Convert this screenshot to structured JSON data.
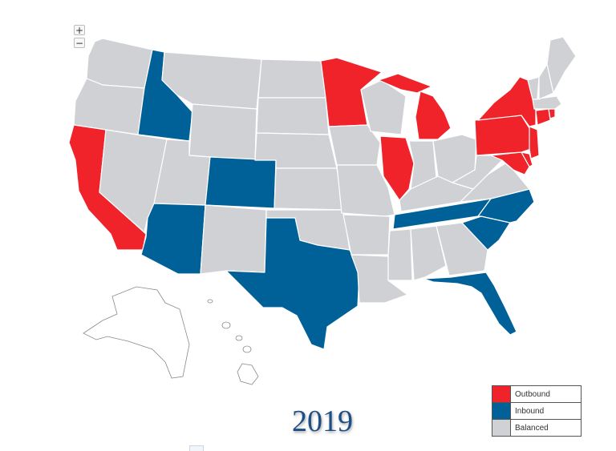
{
  "map": {
    "controls": {
      "zoom_in": "+",
      "zoom_out": "−"
    },
    "year": "2019",
    "colors": {
      "outbound": "#f0232b",
      "inbound": "#006199",
      "balanced": "#d0d1d4"
    },
    "legend": [
      {
        "key": "outbound",
        "label": "Outbound",
        "color": "#f0232b"
      },
      {
        "key": "inbound",
        "label": "Inbound",
        "color": "#006199"
      },
      {
        "key": "balanced",
        "label": "Balanced",
        "color": "#d0d1d4"
      }
    ],
    "states": {
      "Washington": "balanced",
      "Oregon": "balanced",
      "California": "outbound",
      "Idaho": "inbound",
      "Nevada": "balanced",
      "Montana": "balanced",
      "Wyoming": "balanced",
      "Utah": "balanced",
      "Arizona": "inbound",
      "Colorado": "inbound",
      "New Mexico": "balanced",
      "North Dakota": "balanced",
      "South Dakota": "balanced",
      "Nebraska": "balanced",
      "Kansas": "balanced",
      "Oklahoma": "balanced",
      "Texas": "inbound",
      "Minnesota": "outbound",
      "Iowa": "balanced",
      "Missouri": "balanced",
      "Arkansas": "balanced",
      "Louisiana": "balanced",
      "Wisconsin": "balanced",
      "Illinois": "outbound",
      "Michigan": "outbound",
      "Indiana": "balanced",
      "Ohio": "balanced",
      "Kentucky": "balanced",
      "Tennessee": "inbound",
      "Mississippi": "balanced",
      "Alabama": "balanced",
      "Georgia": "balanced",
      "Florida": "inbound",
      "South Carolina": "inbound",
      "North Carolina": "inbound",
      "Virginia": "balanced",
      "West Virginia": "balanced",
      "Maryland": "outbound",
      "Delaware": "outbound",
      "Pennsylvania": "outbound",
      "New Jersey": "outbound",
      "New York": "outbound",
      "Connecticut": "outbound",
      "Rhode Island": "outbound",
      "Massachusetts": "balanced",
      "Vermont": "balanced",
      "New Hampshire": "balanced",
      "Maine": "balanced",
      "Alaska": "none",
      "Hawaii": "none"
    }
  }
}
